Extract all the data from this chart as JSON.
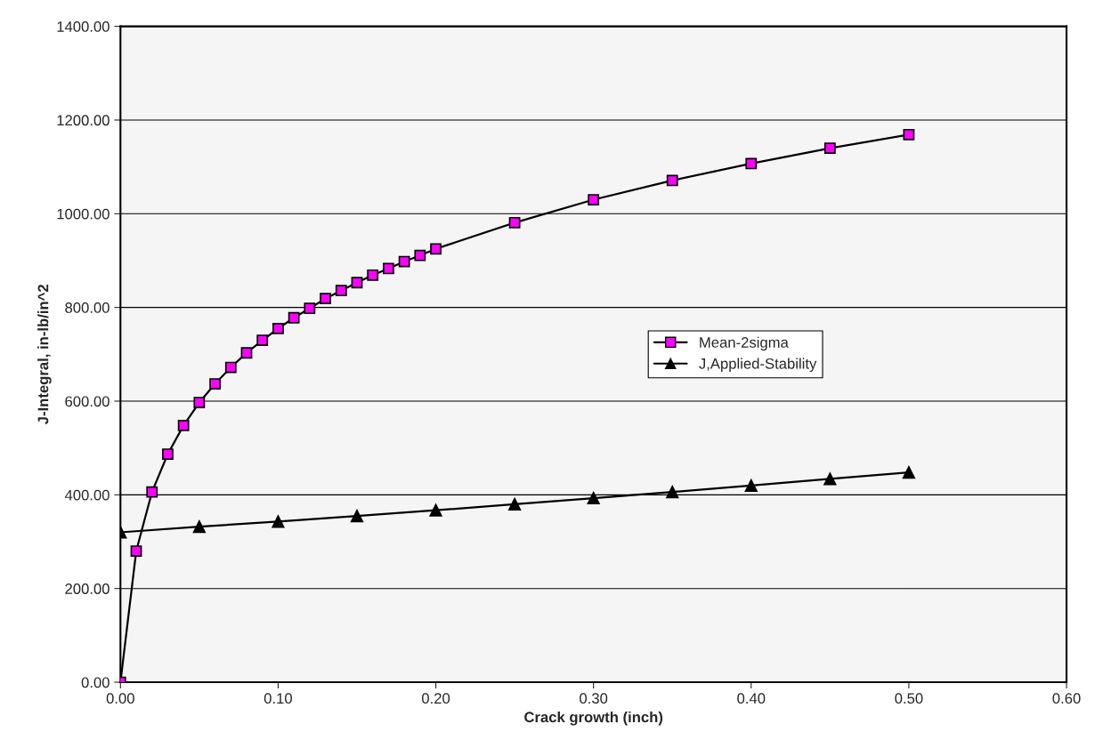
{
  "chart_data": {
    "type": "line",
    "xlabel": "Crack growth (inch)",
    "ylabel": "J-Integral, in-lb/in^2",
    "xlim": [
      0,
      0.6
    ],
    "ylim": [
      0,
      1400
    ],
    "xticks": [
      {
        "value": 0,
        "label": "0.00"
      },
      {
        "value": 0.1,
        "label": "0.10"
      },
      {
        "value": 0.2,
        "label": "0.20"
      },
      {
        "value": 0.3,
        "label": "0.30"
      },
      {
        "value": 0.4,
        "label": "0.40"
      },
      {
        "value": 0.5,
        "label": "0.50"
      },
      {
        "value": 0.6,
        "label": "0.60"
      }
    ],
    "yticks": [
      {
        "value": 0,
        "label": "0.00"
      },
      {
        "value": 200,
        "label": "200.00"
      },
      {
        "value": 400,
        "label": "400.00"
      },
      {
        "value": 600,
        "label": "600.00"
      },
      {
        "value": 800,
        "label": "800.00"
      },
      {
        "value": 1000,
        "label": "1000.00"
      },
      {
        "value": 1200,
        "label": "1200.00"
      },
      {
        "value": 1400,
        "label": "1400.00"
      }
    ],
    "grid": "y",
    "legend": "right",
    "series": [
      {
        "name": "Mean-2sigma",
        "color": "#ff00ff",
        "marker": "square",
        "x": [
          0,
          0.01,
          0.02,
          0.03,
          0.04,
          0.05,
          0.06,
          0.07,
          0.08,
          0.09,
          0.1,
          0.11,
          0.12,
          0.13,
          0.14,
          0.15,
          0.16,
          0.17,
          0.18,
          0.19,
          0.2,
          0.25,
          0.3,
          0.35,
          0.4,
          0.45,
          0.5
        ],
        "values": [
          0,
          280,
          406,
          487,
          548,
          597,
          637,
          672,
          703,
          730,
          755,
          778,
          798,
          819,
          836,
          853,
          869,
          883,
          898,
          911,
          925,
          981,
          1030,
          1071,
          1107,
          1140,
          1169
        ]
      },
      {
        "name": "J,Applied-Stability",
        "color": "#000000",
        "marker": "triangle",
        "x": [
          0,
          0.05,
          0.1,
          0.15,
          0.2,
          0.25,
          0.3,
          0.35,
          0.4,
          0.45,
          0.5
        ],
        "values": [
          320,
          332,
          343,
          355,
          367,
          380,
          393,
          406,
          420,
          434,
          448
        ]
      }
    ]
  }
}
